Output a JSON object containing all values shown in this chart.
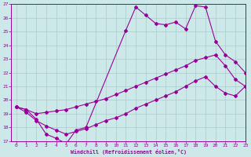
{
  "xlabel": "Windchill (Refroidissement éolien,°C)",
  "background_color": "#cce8e8",
  "line_color": "#990099",
  "grid_color": "#aacccc",
  "ylim": [
    17,
    27
  ],
  "xlim": [
    -0.5,
    23
  ],
  "yticks": [
    17,
    18,
    19,
    20,
    21,
    22,
    23,
    24,
    25,
    26,
    27
  ],
  "xticks": [
    0,
    1,
    2,
    3,
    4,
    5,
    6,
    7,
    8,
    9,
    10,
    11,
    12,
    13,
    14,
    15,
    16,
    17,
    18,
    19,
    20,
    21,
    22,
    23
  ],
  "line1_x": [
    0,
    1,
    2,
    3,
    4,
    5,
    6,
    7,
    11,
    12,
    13,
    14,
    15,
    16,
    17,
    18,
    19,
    20,
    21,
    22,
    23
  ],
  "line1_y": [
    19.5,
    19.3,
    18.6,
    17.5,
    17.2,
    16.8,
    17.8,
    18.0,
    25.1,
    26.8,
    26.2,
    25.6,
    25.5,
    25.7,
    25.2,
    26.9,
    26.8,
    24.3,
    23.3,
    22.8,
    22.0
  ],
  "line2_x": [
    0,
    1,
    2,
    3,
    4,
    5,
    6,
    7,
    8,
    9,
    10,
    11,
    12,
    13,
    14,
    15,
    16,
    17,
    18,
    19,
    20,
    21,
    22,
    23
  ],
  "line2_y": [
    19.5,
    19.3,
    19.0,
    19.1,
    19.2,
    19.3,
    19.5,
    19.7,
    19.9,
    20.1,
    20.4,
    20.7,
    21.0,
    21.3,
    21.6,
    21.9,
    22.2,
    22.5,
    22.9,
    23.1,
    23.3,
    22.5,
    21.5,
    21.0
  ],
  "line3_x": [
    0,
    1,
    2,
    3,
    4,
    5,
    6,
    7,
    8,
    9,
    10,
    11,
    12,
    13,
    14,
    15,
    16,
    17,
    18,
    19,
    20,
    21,
    22,
    23
  ],
  "line3_y": [
    19.5,
    19.1,
    18.5,
    18.1,
    17.8,
    17.5,
    17.7,
    17.9,
    18.2,
    18.5,
    18.7,
    19.0,
    19.4,
    19.7,
    20.0,
    20.3,
    20.6,
    21.0,
    21.4,
    21.7,
    21.0,
    20.5,
    20.3,
    21.0
  ]
}
